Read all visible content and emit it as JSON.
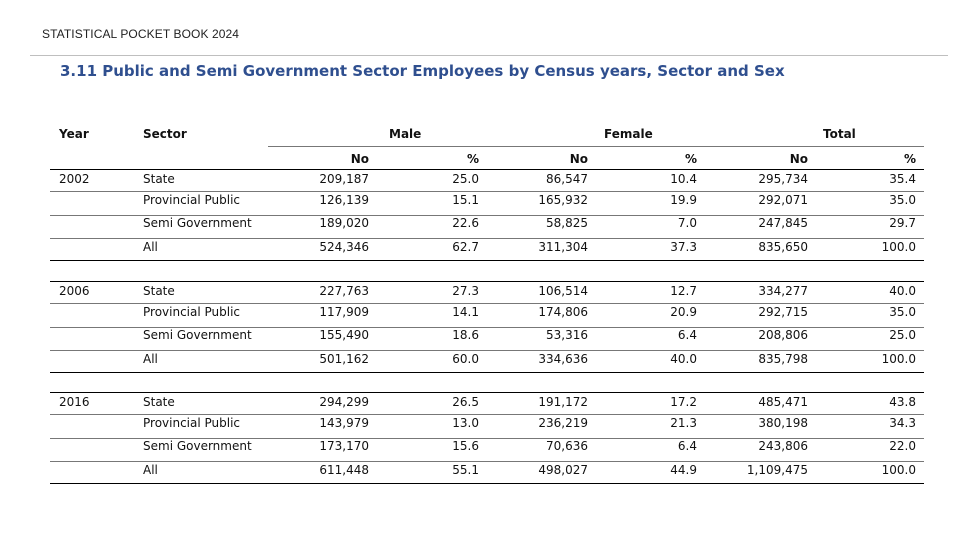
{
  "header": {
    "book_title": "STATISTICAL POCKET BOOK 2024"
  },
  "table": {
    "title": "3.11 Public and Semi Government Sector Employees by Census years, Sector and Sex",
    "col_year": "Year",
    "col_sector": "Sector",
    "group_male": "Male",
    "group_female": "Female",
    "group_total": "Total",
    "sub_no": "No",
    "sub_pct": "%",
    "blocks": [
      {
        "year": "2002",
        "rows": [
          {
            "sector": "State",
            "m_no": "209,187",
            "m_pct": "25.0",
            "f_no": "86,547",
            "f_pct": "10.4",
            "t_no": "295,734",
            "t_pct": "35.4"
          },
          {
            "sector": "Provincial Public",
            "m_no": "126,139",
            "m_pct": "15.1",
            "f_no": "165,932",
            "f_pct": "19.9",
            "t_no": "292,071",
            "t_pct": "35.0"
          },
          {
            "sector": "Semi Government",
            "m_no": "189,020",
            "m_pct": "22.6",
            "f_no": "58,825",
            "f_pct": "7.0",
            "t_no": "247,845",
            "t_pct": "29.7"
          },
          {
            "sector": "All",
            "m_no": "524,346",
            "m_pct": "62.7",
            "f_no": "311,304",
            "f_pct": "37.3",
            "t_no": "835,650",
            "t_pct": "100.0"
          }
        ]
      },
      {
        "year": "2006",
        "rows": [
          {
            "sector": "State",
            "m_no": "227,763",
            "m_pct": "27.3",
            "f_no": "106,514",
            "f_pct": "12.7",
            "t_no": "334,277",
            "t_pct": "40.0"
          },
          {
            "sector": "Provincial Public",
            "m_no": "117,909",
            "m_pct": "14.1",
            "f_no": "174,806",
            "f_pct": "20.9",
            "t_no": "292,715",
            "t_pct": "35.0"
          },
          {
            "sector": "Semi Government",
            "m_no": "155,490",
            "m_pct": "18.6",
            "f_no": "53,316",
            "f_pct": "6.4",
            "t_no": "208,806",
            "t_pct": "25.0"
          },
          {
            "sector": "All",
            "m_no": "501,162",
            "m_pct": "60.0",
            "f_no": "334,636",
            "f_pct": "40.0",
            "t_no": "835,798",
            "t_pct": "100.0"
          }
        ]
      },
      {
        "year": "2016",
        "rows": [
          {
            "sector": "State",
            "m_no": "294,299",
            "m_pct": "26.5",
            "f_no": "191,172",
            "f_pct": "17.2",
            "t_no": "485,471",
            "t_pct": "43.8"
          },
          {
            "sector": "Provincial Public",
            "m_no": "143,979",
            "m_pct": "13.0",
            "f_no": "236,219",
            "f_pct": "21.3",
            "t_no": "380,198",
            "t_pct": "34.3"
          },
          {
            "sector": "Semi Government",
            "m_no": "173,170",
            "m_pct": "15.6",
            "f_no": "70,636",
            "f_pct": "6.4",
            "t_no": "243,806",
            "t_pct": "22.0"
          },
          {
            "sector": "All",
            "m_no": "611,448",
            "m_pct": "55.1",
            "f_no": "498,027",
            "f_pct": "44.9",
            "t_no": "1,109,475",
            "t_pct": "100.0"
          }
        ]
      }
    ]
  }
}
